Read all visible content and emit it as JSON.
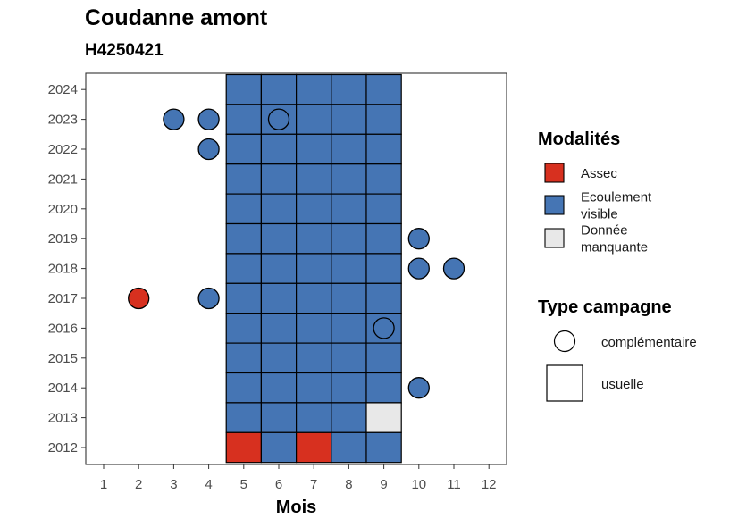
{
  "title": "Coudanne amont",
  "subtitle": "H4250421",
  "colors": {
    "Assec": "#d7301f",
    "Ecoulement visible": "#4575b4",
    "Donnée manquante": "#e8e8e8"
  },
  "legend": {
    "modalites_title": "Modalités",
    "modalites": [
      {
        "key": "Assec",
        "lines": [
          "Assec"
        ]
      },
      {
        "key": "Ecoulement visible",
        "lines": [
          "Ecoulement",
          "visible"
        ]
      },
      {
        "key": "Donnée manquante",
        "lines": [
          "Donnée",
          "manquante"
        ]
      }
    ],
    "type_title": "Type campagne",
    "types": [
      {
        "key": "complémentaire",
        "label": "complémentaire",
        "shape": "circle"
      },
      {
        "key": "usuelle",
        "label": "usuelle",
        "shape": "square"
      }
    ]
  },
  "chart_data": {
    "type": "heatmap",
    "title": "Coudanne amont",
    "subtitle": "H4250421",
    "xlabel": "Mois",
    "ylabel": "",
    "x_ticks": [
      1,
      2,
      3,
      4,
      5,
      6,
      7,
      8,
      9,
      10,
      11,
      12
    ],
    "y_ticks": [
      2012,
      2013,
      2014,
      2015,
      2016,
      2017,
      2018,
      2019,
      2020,
      2021,
      2022,
      2023,
      2024
    ],
    "xlim": [
      0.5,
      12.5
    ],
    "ylim": [
      2011.5,
      2024.5
    ],
    "usuelle": [
      {
        "year": 2024,
        "months": [
          "Ecoulement visible",
          "Ecoulement visible",
          "Ecoulement visible",
          "Ecoulement visible",
          "Ecoulement visible"
        ]
      },
      {
        "year": 2023,
        "months": [
          "Ecoulement visible",
          "Ecoulement visible",
          "Ecoulement visible",
          "Ecoulement visible",
          "Ecoulement visible"
        ]
      },
      {
        "year": 2022,
        "months": [
          "Ecoulement visible",
          "Ecoulement visible",
          "Ecoulement visible",
          "Ecoulement visible",
          "Ecoulement visible"
        ]
      },
      {
        "year": 2021,
        "months": [
          "Ecoulement visible",
          "Ecoulement visible",
          "Ecoulement visible",
          "Ecoulement visible",
          "Ecoulement visible"
        ]
      },
      {
        "year": 2020,
        "months": [
          "Ecoulement visible",
          "Ecoulement visible",
          "Ecoulement visible",
          "Ecoulement visible",
          "Ecoulement visible"
        ]
      },
      {
        "year": 2019,
        "months": [
          "Ecoulement visible",
          "Ecoulement visible",
          "Ecoulement visible",
          "Ecoulement visible",
          "Ecoulement visible"
        ]
      },
      {
        "year": 2018,
        "months": [
          "Ecoulement visible",
          "Ecoulement visible",
          "Ecoulement visible",
          "Ecoulement visible",
          "Ecoulement visible"
        ]
      },
      {
        "year": 2017,
        "months": [
          "Ecoulement visible",
          "Ecoulement visible",
          "Ecoulement visible",
          "Ecoulement visible",
          "Ecoulement visible"
        ]
      },
      {
        "year": 2016,
        "months": [
          "Ecoulement visible",
          "Ecoulement visible",
          "Ecoulement visible",
          "Ecoulement visible",
          "Ecoulement visible"
        ]
      },
      {
        "year": 2015,
        "months": [
          "Ecoulement visible",
          "Ecoulement visible",
          "Ecoulement visible",
          "Ecoulement visible",
          "Ecoulement visible"
        ]
      },
      {
        "year": 2014,
        "months": [
          "Ecoulement visible",
          "Ecoulement visible",
          "Ecoulement visible",
          "Ecoulement visible",
          "Ecoulement visible"
        ]
      },
      {
        "year": 2013,
        "months": [
          "Ecoulement visible",
          "Ecoulement visible",
          "Ecoulement visible",
          "Ecoulement visible",
          "Donnée manquante"
        ]
      },
      {
        "year": 2012,
        "months": [
          "Assec",
          "Ecoulement visible",
          "Assec",
          "Ecoulement visible",
          "Ecoulement visible"
        ]
      }
    ],
    "usuelle_months": [
      5,
      6,
      7,
      8,
      9
    ],
    "complementaire": [
      {
        "month": 3,
        "year": 2023,
        "modalite": "Ecoulement visible"
      },
      {
        "month": 4,
        "year": 2023,
        "modalite": "Ecoulement visible"
      },
      {
        "month": 6,
        "year": 2023,
        "modalite": "Ecoulement visible"
      },
      {
        "month": 4,
        "year": 2022,
        "modalite": "Ecoulement visible"
      },
      {
        "month": 10,
        "year": 2019,
        "modalite": "Ecoulement visible"
      },
      {
        "month": 10,
        "year": 2018,
        "modalite": "Ecoulement visible"
      },
      {
        "month": 11,
        "year": 2018,
        "modalite": "Ecoulement visible"
      },
      {
        "month": 2,
        "year": 2017,
        "modalite": "Assec"
      },
      {
        "month": 4,
        "year": 2017,
        "modalite": "Ecoulement visible"
      },
      {
        "month": 9,
        "year": 2016,
        "modalite": "Ecoulement visible"
      },
      {
        "month": 10,
        "year": 2014,
        "modalite": "Ecoulement visible"
      }
    ],
    "grid": false,
    "legend_position": "right"
  }
}
